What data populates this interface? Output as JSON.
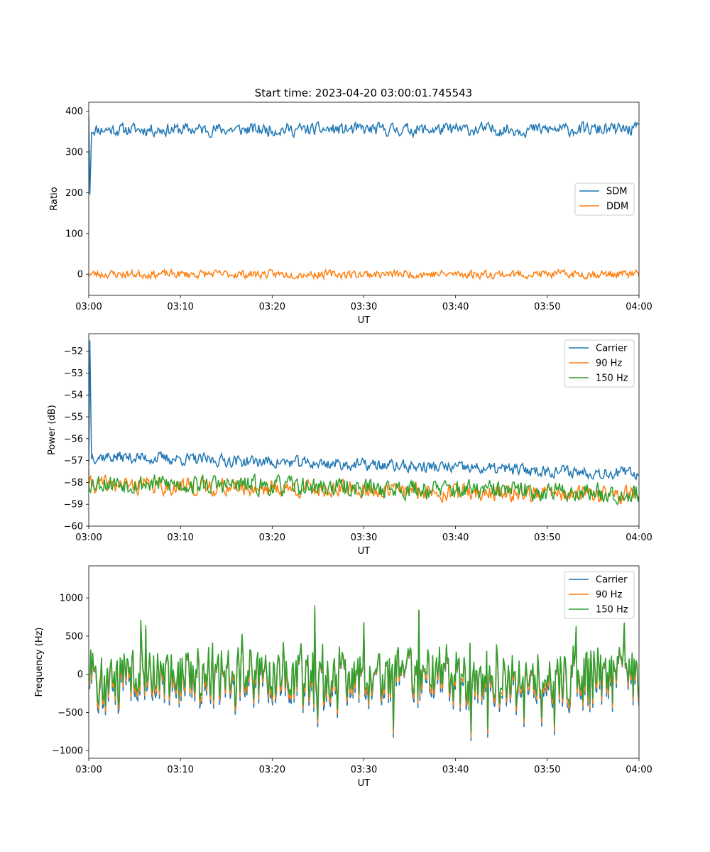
{
  "title": "Start time: 2023-04-20 03:00:01.745543",
  "colors": {
    "blue": "#1f77b4",
    "orange": "#ff7f0e",
    "green": "#2ca02c"
  },
  "chart_data": [
    {
      "type": "line",
      "xlabel": "UT",
      "ylabel": "Ratio",
      "xlim_minutes": [
        0,
        60
      ],
      "ylim": [
        -52,
        422
      ],
      "xticks": [
        "03:00",
        "03:10",
        "03:20",
        "03:30",
        "03:40",
        "03:50",
        "04:00"
      ],
      "yticks": [
        400,
        300,
        200,
        100,
        0
      ],
      "legend": "center-right",
      "series": [
        {
          "name": "SDM",
          "color": "#1f77b4",
          "baseline": 355,
          "noise": 14,
          "seed": 11,
          "x_start": [
            0,
            0.12,
            0.3
          ],
          "y_start": [
            390,
            195,
            340
          ]
        },
        {
          "name": "DDM",
          "color": "#ff7f0e",
          "baseline": 0,
          "noise": 9,
          "seed": 23,
          "x_start": [
            0
          ],
          "y_start": [
            5
          ]
        }
      ]
    },
    {
      "type": "line",
      "xlabel": "UT",
      "ylabel": "Power (dB)",
      "xlim_minutes": [
        0,
        60
      ],
      "ylim": [
        -60,
        -51.2
      ],
      "xticks": [
        "03:00",
        "03:10",
        "03:20",
        "03:30",
        "03:40",
        "03:50",
        "04:00"
      ],
      "yticks": [
        -52,
        -53,
        -54,
        -55,
        -56,
        -57,
        -58,
        -59,
        -60
      ],
      "legend": "top-right",
      "series": [
        {
          "name": "Carrier",
          "color": "#1f77b4",
          "baseline_start": -56.8,
          "baseline_end": -57.6,
          "noise": 0.25,
          "seed": 37,
          "x_start": [
            0,
            0.12,
            0.3
          ],
          "y_start": [
            -57.2,
            -51.5,
            -56.8
          ]
        },
        {
          "name": "90 Hz",
          "color": "#ff7f0e",
          "baseline_start": -58.1,
          "baseline_end": -58.6,
          "noise": 0.35,
          "seed": 41,
          "x_start": [
            0
          ],
          "y_start": [
            -57.6
          ]
        },
        {
          "name": "150 Hz",
          "color": "#2ca02c",
          "baseline_start": -58.0,
          "baseline_end": -58.5,
          "noise": 0.4,
          "seed": 53,
          "x_start": [
            0
          ],
          "y_start": [
            -57.4
          ]
        }
      ]
    },
    {
      "type": "line",
      "xlabel": "UT",
      "ylabel": "Frequency (Hz)",
      "xlim_minutes": [
        0,
        60
      ],
      "ylim": [
        -1100,
        1420
      ],
      "xticks": [
        "03:00",
        "03:10",
        "03:20",
        "03:30",
        "03:40",
        "03:50",
        "04:00"
      ],
      "yticks": [
        1000,
        500,
        0,
        -500,
        -1000
      ],
      "legend": "top-right",
      "series": [
        {
          "name": "Carrier",
          "color": "#1f77b4",
          "baseline": -30,
          "noise": 330,
          "seed": 71,
          "offset": -70
        },
        {
          "name": "90 Hz",
          "color": "#ff7f0e",
          "baseline": -30,
          "noise": 330,
          "seed": 71,
          "offset": -20
        },
        {
          "name": "150 Hz",
          "color": "#2ca02c",
          "baseline": -30,
          "noise": 330,
          "seed": 71,
          "offset": 40
        }
      ]
    }
  ]
}
